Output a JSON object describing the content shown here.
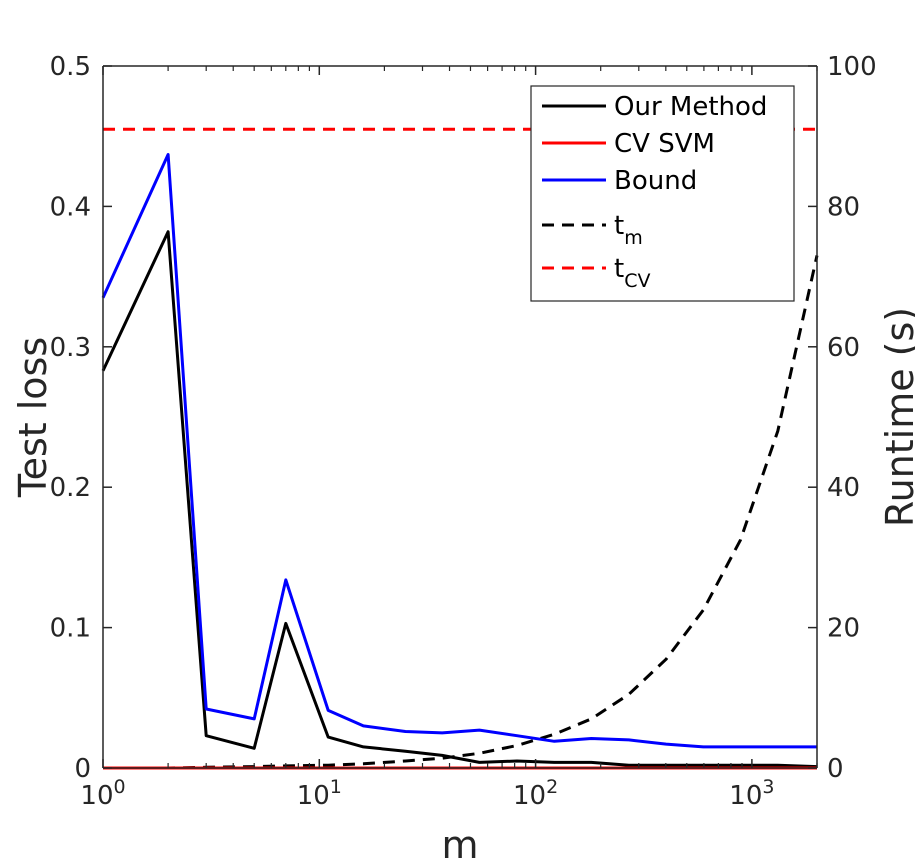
{
  "chart_data": {
    "type": "line",
    "xlabel": "m",
    "ylabel_left": "Test loss",
    "ylabel_right": "Runtime (s)",
    "x_scale": "log",
    "xlim": [
      1,
      2000
    ],
    "ylim_left": [
      0,
      0.5
    ],
    "ylim_right": [
      0,
      100
    ],
    "x_ticks": [
      {
        "value": 1,
        "base": "10",
        "exp": "0"
      },
      {
        "value": 10,
        "base": "10",
        "exp": "1"
      },
      {
        "value": 100,
        "base": "10",
        "exp": "2"
      },
      {
        "value": 1000,
        "base": "10",
        "exp": "3"
      }
    ],
    "y_ticks_left": [
      "0",
      "0.1",
      "0.2",
      "0.3",
      "0.4",
      "0.5"
    ],
    "y_ticks_right": [
      "0",
      "20",
      "40",
      "60",
      "80",
      "100"
    ],
    "x": [
      1,
      2,
      3,
      5,
      7,
      11,
      16,
      25,
      37,
      55,
      82,
      122,
      181,
      270,
      401,
      596,
      886,
      1318,
      2000
    ],
    "series": [
      {
        "name": "Our Method",
        "axis": "left",
        "color": "#000000",
        "dash": "solid",
        "values": [
          0.283,
          0.382,
          0.023,
          0.014,
          0.103,
          0.022,
          0.015,
          0.012,
          0.009,
          0.004,
          0.005,
          0.004,
          0.004,
          0.002,
          0.002,
          0.002,
          0.002,
          0.002,
          0.001
        ]
      },
      {
        "name": "CV SVM",
        "axis": "left",
        "color": "#ff0000",
        "dash": "solid",
        "values": [
          0,
          0,
          0,
          0,
          0,
          0,
          0,
          0,
          0,
          0,
          0,
          0,
          0,
          0,
          0,
          0,
          0,
          0,
          0
        ]
      },
      {
        "name": "Bound",
        "axis": "left",
        "color": "#0000ff",
        "dash": "solid",
        "values": [
          0.335,
          0.437,
          0.042,
          0.035,
          0.134,
          0.041,
          0.03,
          0.026,
          0.025,
          0.027,
          0.023,
          0.019,
          0.021,
          0.02,
          0.017,
          0.015,
          0.015,
          0.015,
          0.015
        ]
      },
      {
        "name": "t",
        "sub": "m",
        "axis": "right",
        "color": "#000000",
        "dash": "dashed",
        "values": [
          0,
          0,
          0.1,
          0.2,
          0.3,
          0.4,
          0.6,
          1.0,
          1.4,
          2.1,
          3.2,
          4.8,
          7.0,
          10.5,
          15.5,
          22.5,
          32.5,
          48,
          73
        ]
      },
      {
        "name": "t",
        "sub": "CV",
        "axis": "right",
        "color": "#ff0000",
        "dash": "dashed",
        "values": [
          91,
          91,
          91,
          91,
          91,
          91,
          91,
          91,
          91,
          91,
          91,
          91,
          91,
          91,
          91,
          91,
          91,
          91,
          91
        ]
      }
    ],
    "legend_position": "top-right"
  }
}
